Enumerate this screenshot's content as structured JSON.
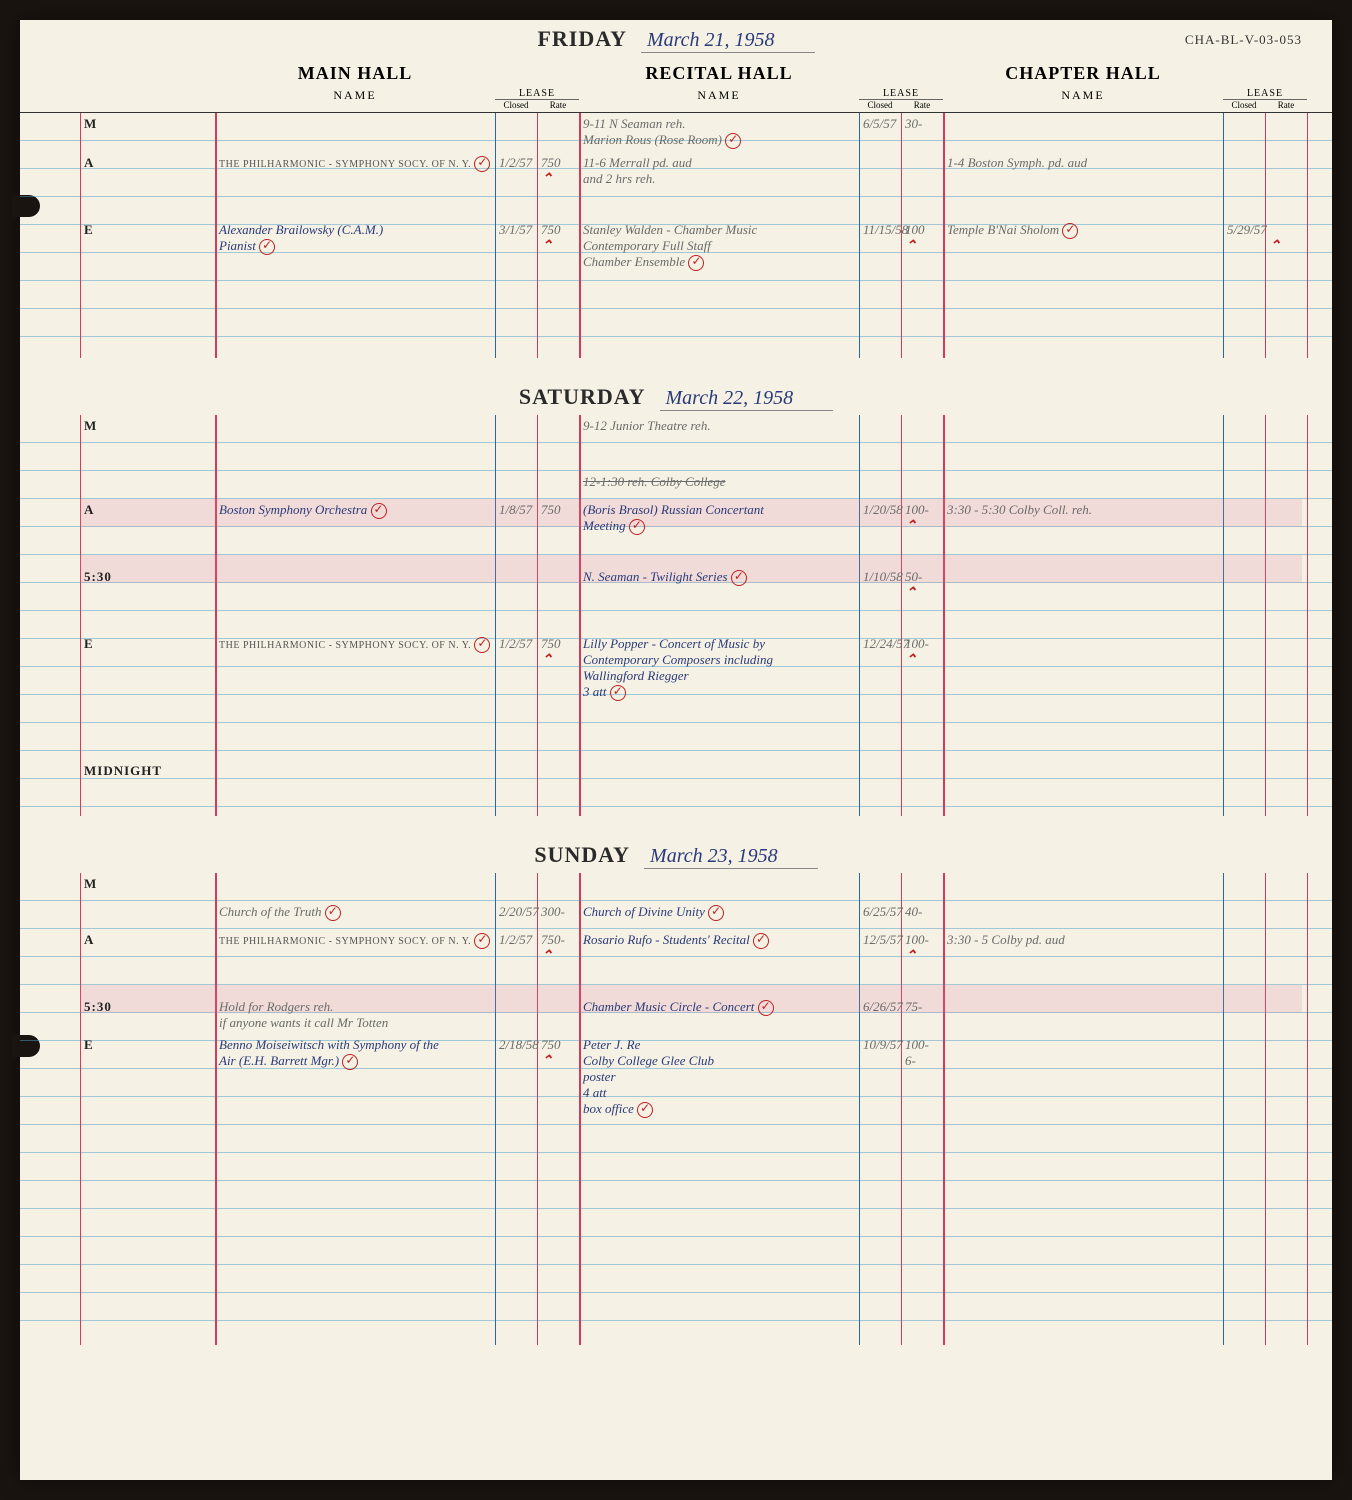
{
  "page_id": "CHA-BL-V-03-053",
  "colors": {
    "paper": "#f5f1e4",
    "blue_ink": "#2a3a7a",
    "pencil": "#6a6a6a",
    "red_ink": "#c02020",
    "rule_blue": "#4aa0c8",
    "rule_red": "#d43a5a"
  },
  "halls": {
    "main": "MAIN HALL",
    "recital": "RECITAL HALL",
    "chapter": "CHAPTER HALL"
  },
  "subheaders": {
    "name": "NAME",
    "lease": "LEASE",
    "closed": "Closed",
    "rate": "Rate"
  },
  "days": [
    {
      "label": "FRIDAY",
      "date": "March 21, 1958",
      "rows": [
        {
          "time": "M",
          "recital_name": "9-11 N Seaman reh.\nMarion Rous (Rose Room)",
          "recital_verify": true,
          "recital_closed": "6/5/57",
          "recital_rate": "30-",
          "recital_style": "pencil"
        },
        {
          "time": "A",
          "main_name": "THE PHILHARMONIC - SYMPHONY SOCY. OF N. Y.",
          "main_style": "stamp",
          "main_verify": true,
          "main_closed": "1/2/57",
          "main_rate": "750",
          "main_caret": true,
          "recital_name": "11-6 Merrall pd. aud\nand 2 hrs reh.",
          "recital_style": "pencil",
          "chapter_name": "1-4 Boston Symph. pd. aud",
          "chapter_style": "pencil"
        },
        {
          "blank": true
        },
        {
          "time": "E",
          "main_name": "Alexander Brailowsky (C.A.M.)\nPianist",
          "main_style": "blue",
          "main_verify": true,
          "main_closed": "3/1/57",
          "main_rate": "750",
          "main_caret": true,
          "recital_name": "Stanley Walden - Chamber Music\nContemporary      Full Staff\nChamber Ensemble",
          "recital_style": "pencil",
          "recital_strike_part": true,
          "recital_verify": true,
          "recital_closed": "11/15/58",
          "recital_rate": "100",
          "recital_caret": true,
          "chapter_name": "Temple B'Nai Sholom",
          "chapter_style": "pencil",
          "chapter_verify": true,
          "chapter_closed": "5/29/57",
          "chapter_caret": true
        },
        {
          "blank": true
        },
        {
          "blank": true
        },
        {
          "blank": true
        }
      ]
    },
    {
      "label": "SATURDAY",
      "date": "March 22, 1958",
      "rows": [
        {
          "time": "M",
          "recital_name": "9-12 Junior Theatre reh.",
          "recital_style": "pencil"
        },
        {
          "blank": true
        },
        {
          "recital_name": "12-1:30 reh. Colby College",
          "recital_style": "pencil",
          "recital_allstrike": true
        },
        {
          "time": "A",
          "pink": true,
          "main_name": "Boston Symphony Orchestra",
          "main_style": "blue",
          "main_verify": true,
          "main_closed": "1/8/57",
          "main_rate": "750",
          "recital_name": "(Boris Brasol) Russian Concertant\nMeeting",
          "recital_style": "blue",
          "recital_verify": true,
          "recital_closed": "1/20/58",
          "recital_rate": "100-",
          "recital_caret": true,
          "chapter_name": "3:30 - 5:30 Colby Coll. reh.",
          "chapter_style": "pencil"
        },
        {
          "blank": true
        },
        {
          "time": "5:30",
          "pink": true,
          "recital_name": "N. Seaman - Twilight Series",
          "recital_style": "blue",
          "recital_verify": true,
          "recital_closed": "1/10/58",
          "recital_rate": "50-",
          "recital_caret": true
        },
        {
          "blank": true
        },
        {
          "time": "E",
          "main_name": "THE PHILHARMONIC - SYMPHONY SOCY. OF N. Y.",
          "main_style": "stamp",
          "main_verify": true,
          "main_closed": "1/2/57",
          "main_rate": "750",
          "main_caret": true,
          "recital_name": "Lilly Popper - Concert of Music by\nContemporary Composers including\nWallingford Riegger\n3 att",
          "recital_style": "blue",
          "recital_verify": true,
          "recital_closed": "12/24/57",
          "recital_rate": "100-",
          "recital_caret": true
        },
        {
          "blank": true
        },
        {
          "blank": true
        },
        {
          "time": "MIDNIGHT"
        },
        {
          "blank": true
        }
      ]
    },
    {
      "label": "SUNDAY",
      "date": "March 23, 1958",
      "rows": [
        {
          "time": "M"
        },
        {
          "main_name": "Church of the Truth",
          "main_style": "pencil",
          "main_verify": true,
          "main_closed": "2/20/57",
          "main_rate": "300-",
          "recital_name": "Church of Divine Unity",
          "recital_style": "blue",
          "recital_verify": true,
          "recital_closed": "6/25/57",
          "recital_rate": "40-"
        },
        {
          "time": "A",
          "main_name": "THE PHILHARMONIC - SYMPHONY SOCY. OF N. Y.",
          "main_style": "stamp",
          "main_verify": true,
          "main_closed": "1/2/57",
          "main_rate": "750-",
          "main_caret": true,
          "recital_name": "Rosario Rufo - Students' Recital",
          "recital_style": "blue",
          "recital_verify": true,
          "recital_closed": "12/5/57",
          "recital_rate": "100-",
          "recital_caret": true,
          "chapter_name": "3:30 - 5 Colby pd. aud",
          "chapter_style": "pencil"
        },
        {
          "blank": true
        },
        {
          "time": "5:30",
          "pink": true,
          "main_name": "Hold for Rodgers reh.\nif anyone wants it call Mr Totten",
          "main_style": "pencil",
          "recital_name": "Chamber Music Circle - Concert",
          "recital_style": "blue",
          "recital_verify": true,
          "recital_closed": "6/26/57",
          "recital_rate": "75-"
        },
        {
          "time": "E",
          "main_name": "Benno Moiseiwitsch with Symphony of the\nAir (E.H. Barrett Mgr.)",
          "main_style": "blue",
          "main_verify": true,
          "main_closed": "2/18/58",
          "main_rate": "750",
          "main_caret": true,
          "recital_name": "Peter J. Re\nColby College Glee Club\nposter\n4 att\nbox office",
          "recital_style": "blue",
          "recital_verify": true,
          "recital_closed": "10/9/57",
          "recital_rate": "100-\n6-"
        },
        {
          "blank": true
        },
        {
          "blank": true
        },
        {
          "blank": true
        },
        {
          "blank": true
        },
        {
          "blank": true
        },
        {
          "blank": true
        },
        {
          "blank": true
        },
        {
          "blank": true
        }
      ]
    }
  ]
}
